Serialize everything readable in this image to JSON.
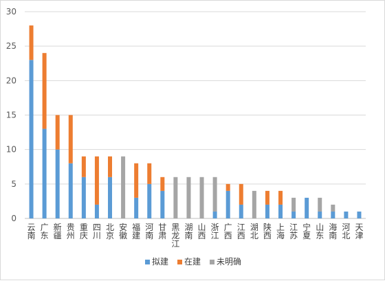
{
  "chart_data": {
    "type": "bar",
    "stacked": true,
    "categories": [
      "云南",
      "广东",
      "新疆",
      "贵州",
      "重庆",
      "四川",
      "北京",
      "安徽",
      "福建",
      "河南",
      "甘肃",
      "黑龙江",
      "湖南",
      "山西",
      "浙江",
      "广西",
      "江西",
      "湖北",
      "陕西",
      "上海",
      "江苏",
      "宁夏",
      "山东",
      "海南",
      "河北",
      "天津"
    ],
    "series": [
      {
        "name": "拟建",
        "color": "#5b9bd5",
        "values": [
          23,
          13,
          10,
          8,
          6,
          2,
          6,
          0,
          3,
          5,
          4,
          0,
          0,
          0,
          1,
          4,
          2,
          0,
          2,
          2,
          1,
          3,
          1,
          1,
          1,
          1
        ]
      },
      {
        "name": "在建",
        "color": "#ed7d31",
        "values": [
          5,
          11,
          5,
          7,
          3,
          7,
          3,
          0,
          5,
          3,
          2,
          0,
          0,
          0,
          0,
          1,
          3,
          0,
          2,
          2,
          0,
          0,
          0,
          0,
          0,
          0
        ]
      },
      {
        "name": "未明确",
        "color": "#a5a5a5",
        "values": [
          0,
          0,
          0,
          0,
          0,
          0,
          0,
          9,
          0,
          0,
          0,
          6,
          6,
          6,
          5,
          0,
          0,
          4,
          0,
          0,
          2,
          0,
          2,
          1,
          0,
          0
        ]
      }
    ],
    "ylim": [
      0,
      30
    ],
    "yticks": [
      "0",
      "5",
      "10",
      "15",
      "20",
      "25",
      "30"
    ],
    "grid": true,
    "legend": "bottom"
  }
}
